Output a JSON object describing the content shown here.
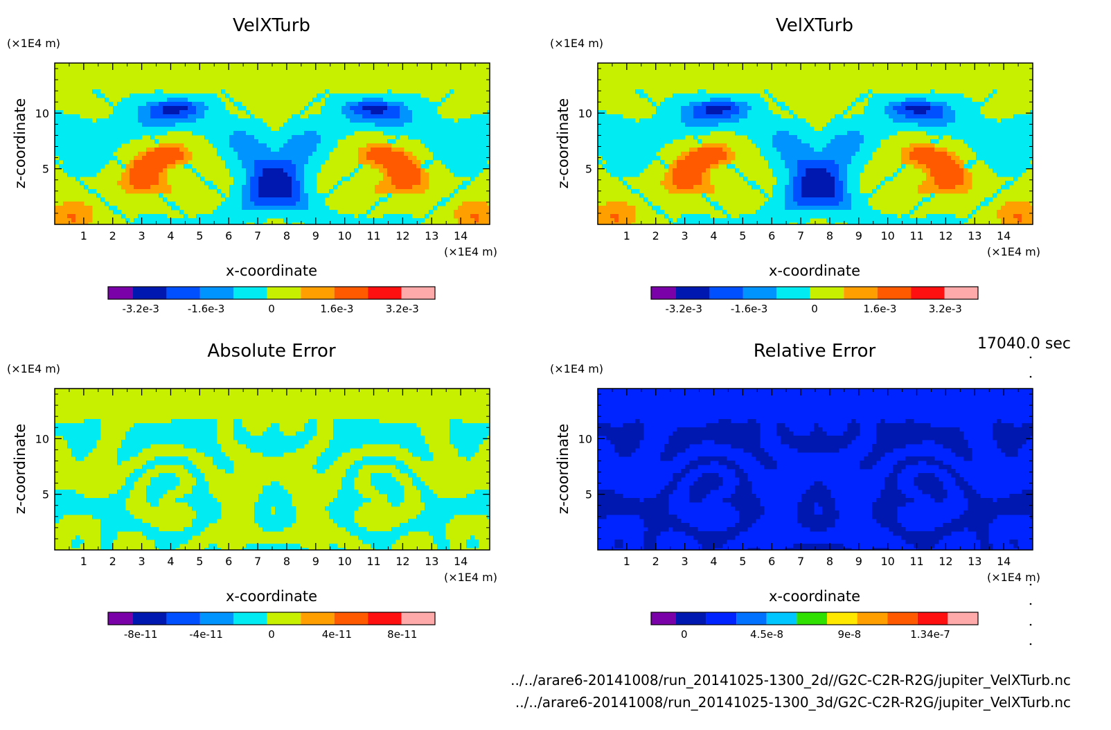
{
  "timestamp": "17040.0 sec",
  "files": [
    "../../arare6-20141008/run_20141025-1300_2d//G2C-C2R-R2G/jupiter_VelXTurb.nc",
    "../../arare6-20141008/run_20141025-1300_3d/G2C-C2R-R2G/jupiter_VelXTurb.nc"
  ],
  "chart_data": [
    {
      "type": "heatmap",
      "title": "VelXTurb",
      "xlabel": "x-coordinate",
      "ylabel": "z-coordinate",
      "x_unit": "(×1E4 m)",
      "y_unit": "(×1E4 m)",
      "xlim": [
        0,
        15
      ],
      "ylim": [
        0,
        14.5
      ],
      "x_ticks": [
        1,
        2,
        3,
        4,
        5,
        6,
        7,
        8,
        9,
        10,
        11,
        12,
        13,
        14
      ],
      "y_ticks": [
        5,
        10
      ],
      "pattern": "turb",
      "bg_color": "#c6f000",
      "colorbar": {
        "colors": [
          "#7a00a8",
          "#0018b0",
          "#0050ff",
          "#0094ff",
          "#00ecf2",
          "#c6f000",
          "#ffa000",
          "#ff5a00",
          "#ff1010",
          "#ffaaaa"
        ],
        "tick_labels": [
          "-3.2e-3",
          "-1.6e-3",
          "0",
          "1.6e-3",
          "3.2e-3"
        ],
        "tick_values": [
          -0.0032,
          -0.0016,
          0,
          0.0016,
          0.0032
        ],
        "vmin": -0.004,
        "vmax": 0.004
      }
    },
    {
      "type": "heatmap",
      "title": "VelXTurb",
      "xlabel": "x-coordinate",
      "ylabel": "z-coordinate",
      "x_unit": "(×1E4 m)",
      "y_unit": "(×1E4 m)",
      "xlim": [
        0,
        15
      ],
      "ylim": [
        0,
        14.5
      ],
      "x_ticks": [
        1,
        2,
        3,
        4,
        5,
        6,
        7,
        8,
        9,
        10,
        11,
        12,
        13,
        14
      ],
      "y_ticks": [
        5,
        10
      ],
      "pattern": "turb",
      "bg_color": "#c6f000",
      "colorbar": {
        "colors": [
          "#7a00a8",
          "#0018b0",
          "#0050ff",
          "#0094ff",
          "#00ecf2",
          "#c6f000",
          "#ffa000",
          "#ff5a00",
          "#ff1010",
          "#ffaaaa"
        ],
        "tick_labels": [
          "-3.2e-3",
          "-1.6e-3",
          "0",
          "1.6e-3",
          "3.2e-3"
        ],
        "tick_values": [
          -0.0032,
          -0.0016,
          0,
          0.0016,
          0.0032
        ],
        "vmin": -0.004,
        "vmax": 0.004
      }
    },
    {
      "type": "heatmap",
      "title": "Absolute Error",
      "xlabel": "x-coordinate",
      "ylabel": "z-coordinate",
      "x_unit": "(×1E4 m)",
      "y_unit": "(×1E4 m)",
      "xlim": [
        0,
        15
      ],
      "ylim": [
        0,
        14.5
      ],
      "x_ticks": [
        1,
        2,
        3,
        4,
        5,
        6,
        7,
        8,
        9,
        10,
        11,
        12,
        13,
        14
      ],
      "y_ticks": [
        5,
        10
      ],
      "pattern": "abs",
      "bg_color": "#c6f000",
      "colorbar": {
        "colors": [
          "#7a00a8",
          "#0018b0",
          "#0050ff",
          "#0094ff",
          "#00ecf2",
          "#c6f000",
          "#ffa000",
          "#ff5a00",
          "#ff1010",
          "#ffaaaa"
        ],
        "tick_labels": [
          "-8e-11",
          "-4e-11",
          "0",
          "4e-11",
          "8e-11"
        ],
        "tick_values": [
          -8e-11,
          -4e-11,
          0,
          4e-11,
          8e-11
        ],
        "vmin": -1e-10,
        "vmax": 1e-10
      }
    },
    {
      "type": "heatmap",
      "title": "Relative Error",
      "xlabel": "x-coordinate",
      "ylabel": "z-coordinate",
      "x_unit": "(×1E4 m)",
      "y_unit": "(×1E4 m)",
      "xlim": [
        0,
        15
      ],
      "ylim": [
        0,
        14.5
      ],
      "x_ticks": [
        1,
        2,
        3,
        4,
        5,
        6,
        7,
        8,
        9,
        10,
        11,
        12,
        13,
        14
      ],
      "y_ticks": [
        5,
        10
      ],
      "pattern": "rel",
      "bg_color": "#0024ff",
      "colorbar": {
        "colors": [
          "#7a00a8",
          "#0018b0",
          "#0024ff",
          "#0072ff",
          "#00c6ff",
          "#30e000",
          "#ffe800",
          "#ffa000",
          "#ff5a00",
          "#ff1010",
          "#ffaaaa"
        ],
        "tick_labels": [
          "0",
          "4.5e-8",
          "9e-8",
          "1.34e-7"
        ],
        "tick_values": [
          0,
          4.5e-08,
          9e-08,
          1.34e-07
        ],
        "vmin": -1.8e-08,
        "vmax": 1.6e-07
      }
    }
  ]
}
